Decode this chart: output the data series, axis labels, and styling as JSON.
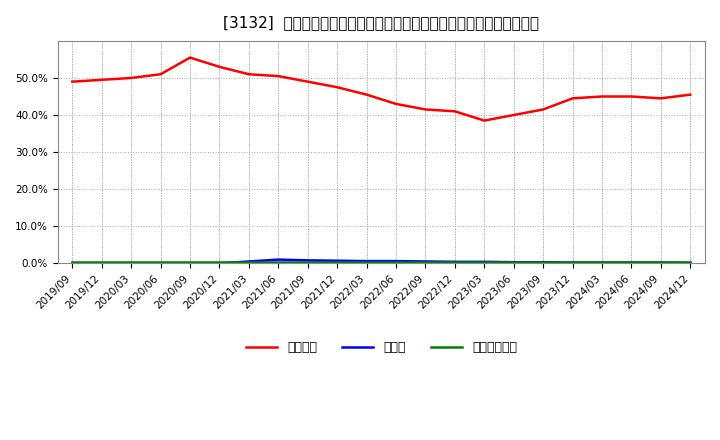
{
  "title": "[3132]  自己資本、のれん、繰延税金資産の総資産に対する比率の推移",
  "x_labels": [
    "2019/09",
    "2019/12",
    "2020/03",
    "2020/06",
    "2020/09",
    "2020/12",
    "2021/03",
    "2021/06",
    "2021/09",
    "2021/12",
    "2022/03",
    "2022/06",
    "2022/09",
    "2022/12",
    "2023/03",
    "2023/06",
    "2023/09",
    "2023/12",
    "2024/03",
    "2024/06",
    "2024/09",
    "2024/12"
  ],
  "jikoshihon": [
    0.49,
    0.495,
    0.5,
    0.51,
    0.555,
    0.53,
    0.51,
    0.505,
    0.49,
    0.475,
    0.455,
    0.43,
    0.415,
    0.41,
    0.385,
    0.4,
    0.415,
    0.445,
    0.45,
    0.45,
    0.445,
    0.455
  ],
  "noren": [
    0.0,
    0.0,
    0.0,
    0.0,
    0.0,
    0.0,
    0.005,
    0.01,
    0.008,
    0.007,
    0.006,
    0.006,
    0.005,
    0.004,
    0.004,
    0.003,
    0.003,
    0.002,
    0.002,
    0.002,
    0.002,
    0.001
  ],
  "kurinobe": [
    0.003,
    0.003,
    0.003,
    0.003,
    0.003,
    0.003,
    0.003,
    0.003,
    0.003,
    0.003,
    0.003,
    0.003,
    0.003,
    0.003,
    0.003,
    0.003,
    0.003,
    0.003,
    0.003,
    0.003,
    0.003,
    0.003
  ],
  "jikoshihon_color": "#ff0000",
  "noren_color": "#0000ff",
  "kurinobe_color": "#008000",
  "legend_labels": [
    "自己資本",
    "のれん",
    "繰延税金資産"
  ],
  "bg_color": "#ffffff",
  "plot_bg_color": "#ffffff",
  "grid_color": "#aaaaaa",
  "ylim": [
    0.0,
    0.6
  ],
  "yticks": [
    0.0,
    0.1,
    0.2,
    0.3,
    0.4,
    0.5
  ],
  "title_fontsize": 11,
  "axis_fontsize": 7.5
}
